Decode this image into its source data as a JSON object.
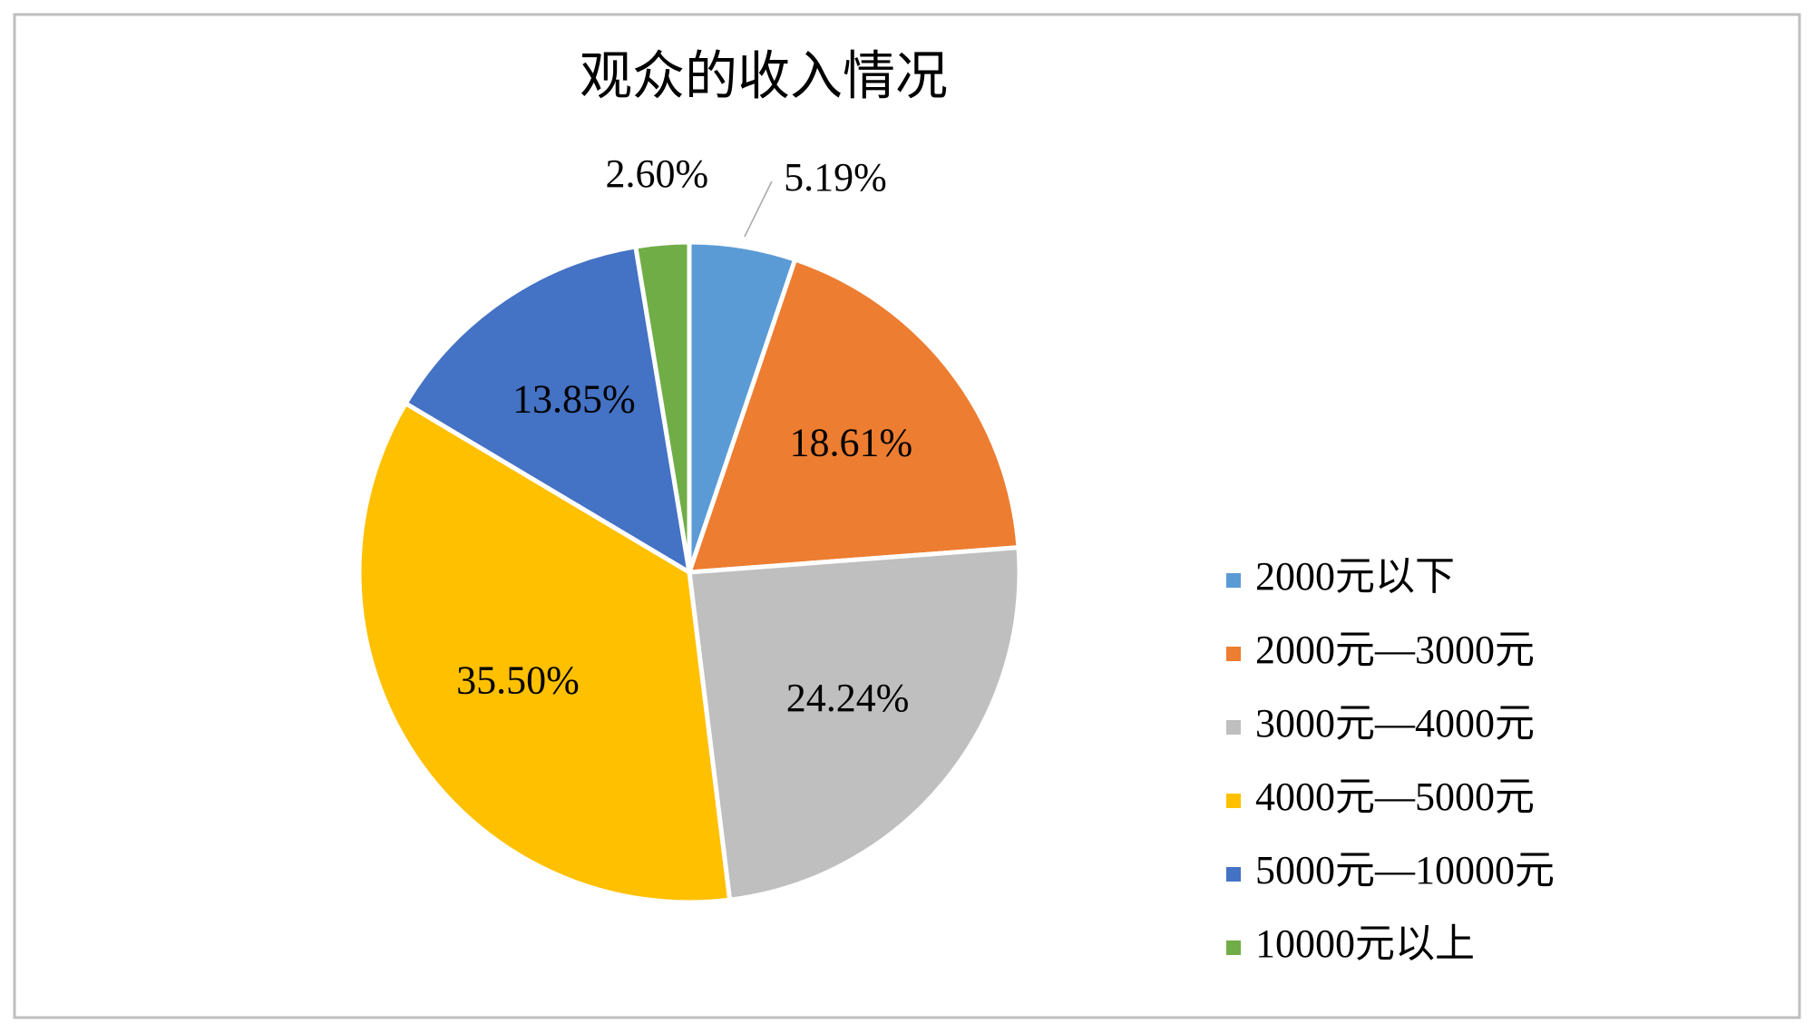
{
  "chart_data": {
    "type": "pie",
    "title": "观众的收入情况",
    "categories": [
      "2000元以下",
      "2000元—3000元",
      "3000元—4000元",
      "4000元—5000元",
      "5000元—10000元",
      "10000元以上"
    ],
    "values": [
      5.19,
      18.61,
      24.24,
      35.5,
      13.85,
      2.6
    ],
    "value_labels": [
      "5.19%",
      "18.61%",
      "24.24%",
      "35.50%",
      "13.85%",
      "2.60%"
    ],
    "colors": [
      "#5b9bd5",
      "#ed7d31",
      "#bfbfbf",
      "#ffc000",
      "#4472c4",
      "#70ad47"
    ],
    "legend": "right"
  }
}
